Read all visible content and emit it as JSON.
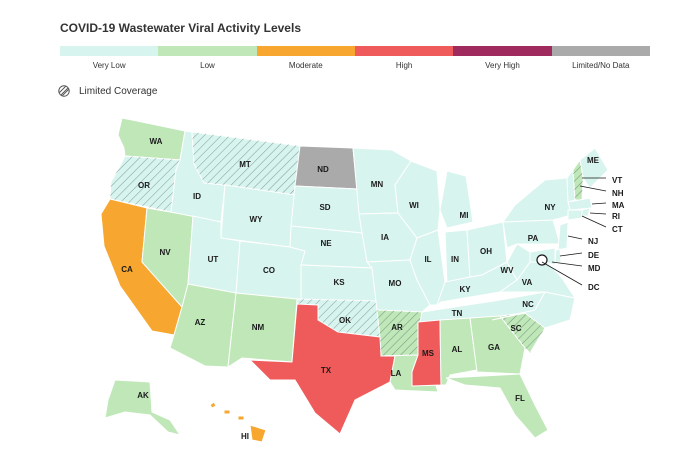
{
  "title": "COVID-19 Wastewater Viral Activity Levels",
  "legend": [
    {
      "label": "Very Low",
      "color": "#d8f4ee"
    },
    {
      "label": "Low",
      "color": "#bfe7b8"
    },
    {
      "label": "Moderate",
      "color": "#f7a62f"
    },
    {
      "label": "High",
      "color": "#ef5b5b"
    },
    {
      "label": "Very High",
      "color": "#9e2a5e"
    },
    {
      "label": "Limited/No Data",
      "color": "#aaaaaa"
    }
  ],
  "limited_coverage": {
    "label": "Limited Coverage"
  },
  "states": [
    {
      "abbr": "WA",
      "level": "Low",
      "limited": false
    },
    {
      "abbr": "OR",
      "level": "Very Low",
      "limited": true
    },
    {
      "abbr": "CA",
      "level": "Moderate",
      "limited": false
    },
    {
      "abbr": "NV",
      "level": "Low",
      "limited": false
    },
    {
      "abbr": "ID",
      "level": "Very Low",
      "limited": false
    },
    {
      "abbr": "MT",
      "level": "Very Low",
      "limited": true
    },
    {
      "abbr": "WY",
      "level": "Very Low",
      "limited": false
    },
    {
      "abbr": "UT",
      "level": "Very Low",
      "limited": false
    },
    {
      "abbr": "AZ",
      "level": "Low",
      "limited": false
    },
    {
      "abbr": "CO",
      "level": "Very Low",
      "limited": false
    },
    {
      "abbr": "NM",
      "level": "Low",
      "limited": false
    },
    {
      "abbr": "ND",
      "level": "Limited/No Data",
      "limited": false
    },
    {
      "abbr": "SD",
      "level": "Very Low",
      "limited": false
    },
    {
      "abbr": "NE",
      "level": "Very Low",
      "limited": false
    },
    {
      "abbr": "KS",
      "level": "Very Low",
      "limited": false
    },
    {
      "abbr": "OK",
      "level": "Very Low",
      "limited": true
    },
    {
      "abbr": "TX",
      "level": "High",
      "limited": false
    },
    {
      "abbr": "MN",
      "level": "Very Low",
      "limited": false
    },
    {
      "abbr": "IA",
      "level": "Very Low",
      "limited": false
    },
    {
      "abbr": "MO",
      "level": "Very Low",
      "limited": false
    },
    {
      "abbr": "AR",
      "level": "Low",
      "limited": true
    },
    {
      "abbr": "LA",
      "level": "Low",
      "limited": false
    },
    {
      "abbr": "WI",
      "level": "Very Low",
      "limited": false
    },
    {
      "abbr": "IL",
      "level": "Very Low",
      "limited": false
    },
    {
      "abbr": "MI",
      "level": "Very Low",
      "limited": false
    },
    {
      "abbr": "IN",
      "level": "Very Low",
      "limited": false
    },
    {
      "abbr": "OH",
      "level": "Very Low",
      "limited": false
    },
    {
      "abbr": "KY",
      "level": "Very Low",
      "limited": false
    },
    {
      "abbr": "TN",
      "level": "Very Low",
      "limited": false
    },
    {
      "abbr": "MS",
      "level": "High",
      "limited": false
    },
    {
      "abbr": "AL",
      "level": "Low",
      "limited": false
    },
    {
      "abbr": "GA",
      "level": "Low",
      "limited": false
    },
    {
      "abbr": "FL",
      "level": "Low",
      "limited": false
    },
    {
      "abbr": "SC",
      "level": "Low",
      "limited": true
    },
    {
      "abbr": "NC",
      "level": "Very Low",
      "limited": false
    },
    {
      "abbr": "VA",
      "level": "Very Low",
      "limited": false
    },
    {
      "abbr": "WV",
      "level": "Very Low",
      "limited": false
    },
    {
      "abbr": "PA",
      "level": "Very Low",
      "limited": false
    },
    {
      "abbr": "NY",
      "level": "Very Low",
      "limited": false
    },
    {
      "abbr": "ME",
      "level": "Very Low",
      "limited": false
    },
    {
      "abbr": "VT",
      "level": "Very Low",
      "limited": false
    },
    {
      "abbr": "NH",
      "level": "Low",
      "limited": true
    },
    {
      "abbr": "MA",
      "level": "Very Low",
      "limited": false
    },
    {
      "abbr": "RI",
      "level": "Very Low",
      "limited": false
    },
    {
      "abbr": "CT",
      "level": "Very Low",
      "limited": false
    },
    {
      "abbr": "NJ",
      "level": "Very Low",
      "limited": false
    },
    {
      "abbr": "DE",
      "level": "Very Low",
      "limited": false
    },
    {
      "abbr": "MD",
      "level": "Very Low",
      "limited": false
    },
    {
      "abbr": "DC",
      "level": "Very Low",
      "limited": false
    },
    {
      "abbr": "AK",
      "level": "Low",
      "limited": false
    },
    {
      "abbr": "HI",
      "level": "Moderate",
      "limited": false
    }
  ]
}
